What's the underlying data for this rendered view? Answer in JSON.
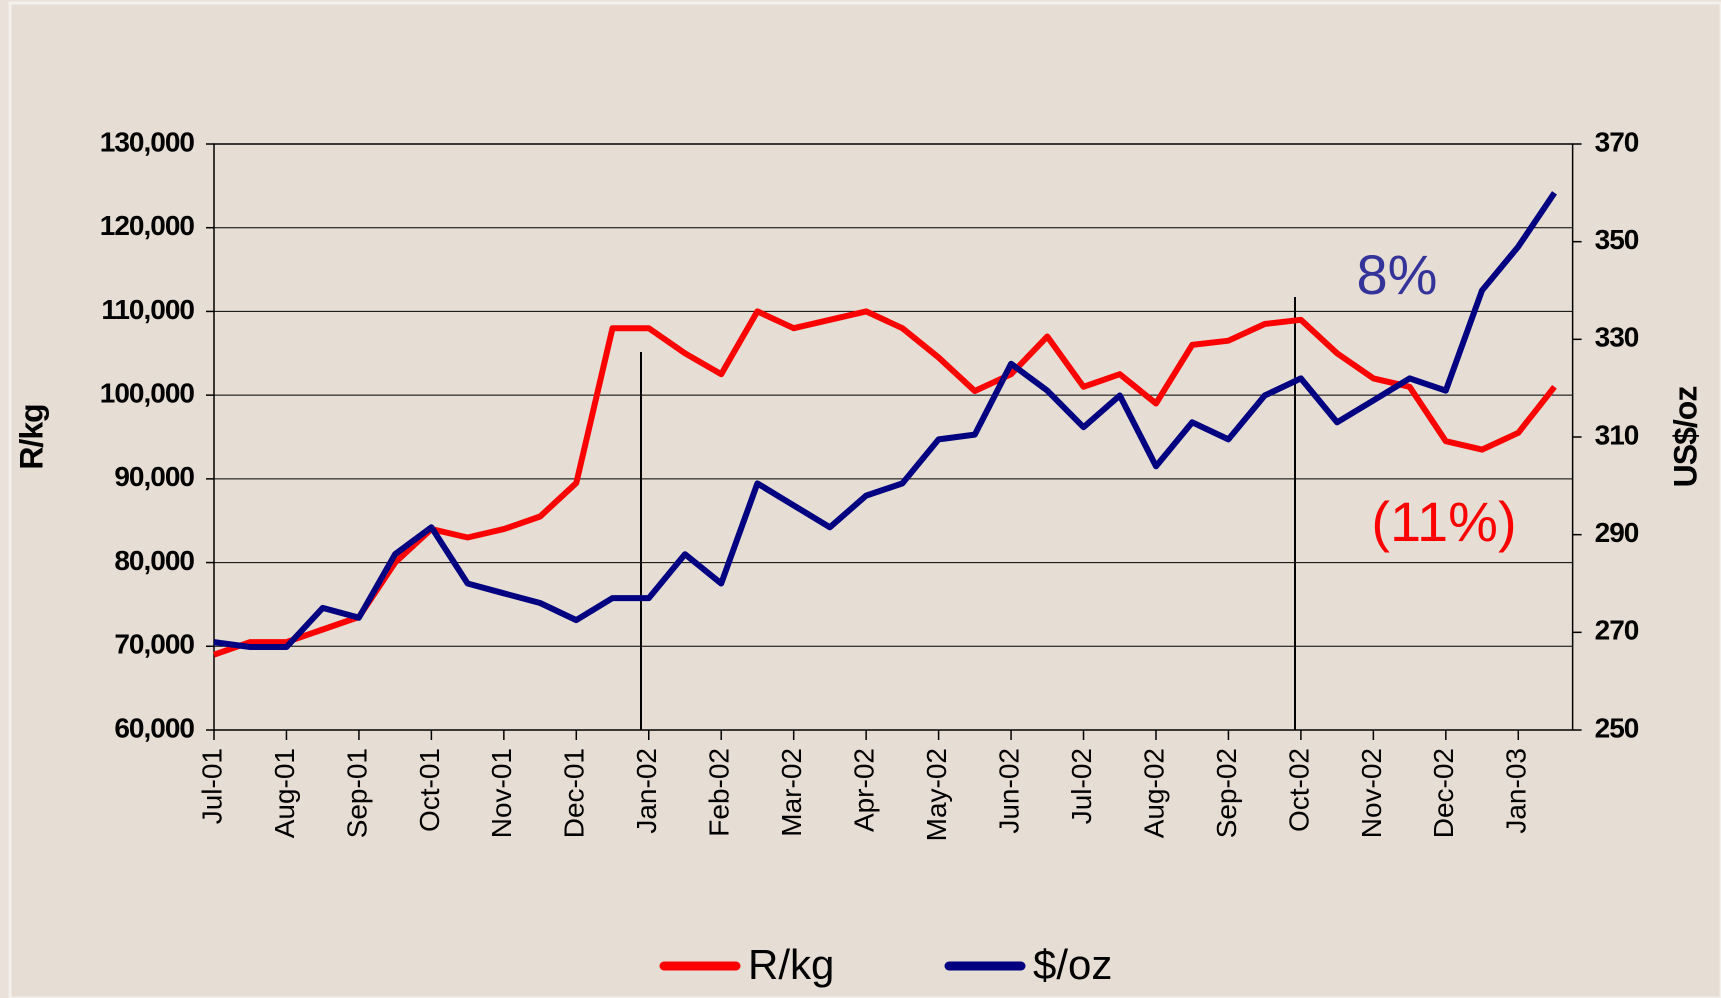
{
  "chart_data": {
    "type": "line",
    "y_label": "R/kg",
    "y2_label": "US$/oz",
    "categories": [
      "Jul-01",
      null,
      "Aug-01",
      null,
      "Sep-01",
      null,
      "Oct-01",
      null,
      "Nov-01",
      null,
      "Dec-01",
      null,
      "Jan-02",
      null,
      "Feb-02",
      null,
      "Mar-02",
      null,
      "Apr-02",
      null,
      "May-02",
      null,
      "Jun-02",
      null,
      "Jul-02",
      null,
      "Aug-02",
      null,
      "Sep-02",
      null,
      "Oct-02",
      null,
      "Nov-02",
      null,
      "Dec-02",
      null,
      "Jan-03",
      null
    ],
    "series": [
      {
        "name": "R/kg",
        "color": "#ff0000",
        "axis": "y",
        "values": [
          69000,
          70500,
          70500,
          72000,
          73500,
          80000,
          84000,
          83000,
          84000,
          85500,
          89500,
          108000,
          108000,
          105000,
          102500,
          110000,
          108000,
          109000,
          110000,
          108000,
          104500,
          100500,
          102500,
          107000,
          101000,
          102500,
          99000,
          106000,
          106500,
          108500,
          109000,
          105000,
          102000,
          101000,
          94500,
          93500,
          95500,
          101000
        ]
      },
      {
        "name": "$/oz",
        "color": "#000080",
        "axis": "y2",
        "values": [
          268,
          267,
          267,
          275,
          273,
          286,
          291.5,
          280,
          278,
          276,
          272.5,
          277,
          277,
          286,
          280,
          300.5,
          296,
          291.5,
          298,
          300.5,
          309.5,
          310.5,
          325,
          319.5,
          312,
          318.5,
          304,
          313,
          309.5,
          318.5,
          322,
          313,
          317.5,
          322,
          319.5,
          340,
          349,
          360
        ]
      }
    ],
    "ylim": [
      60000,
      130000
    ],
    "yticks": [
      {
        "value": 60000,
        "label": "60,000"
      },
      {
        "value": 70000,
        "label": "70,000"
      },
      {
        "value": 80000,
        "label": "80,000"
      },
      {
        "value": 90000,
        "label": "90,000"
      },
      {
        "value": 100000,
        "label": "100,000"
      },
      {
        "value": 110000,
        "label": "110,000"
      },
      {
        "value": 120000,
        "label": "120,000"
      },
      {
        "value": 130000,
        "label": "130,000"
      }
    ],
    "y2lim": [
      250,
      370
    ],
    "y2ticks": [
      250,
      270,
      290,
      310,
      330,
      350,
      370
    ],
    "grid": true,
    "legend": "bottom",
    "annotations": [
      {
        "text": "8%",
        "color": "#333399"
      },
      {
        "text": "(11%)",
        "color": "#ff0000"
      }
    ]
  }
}
